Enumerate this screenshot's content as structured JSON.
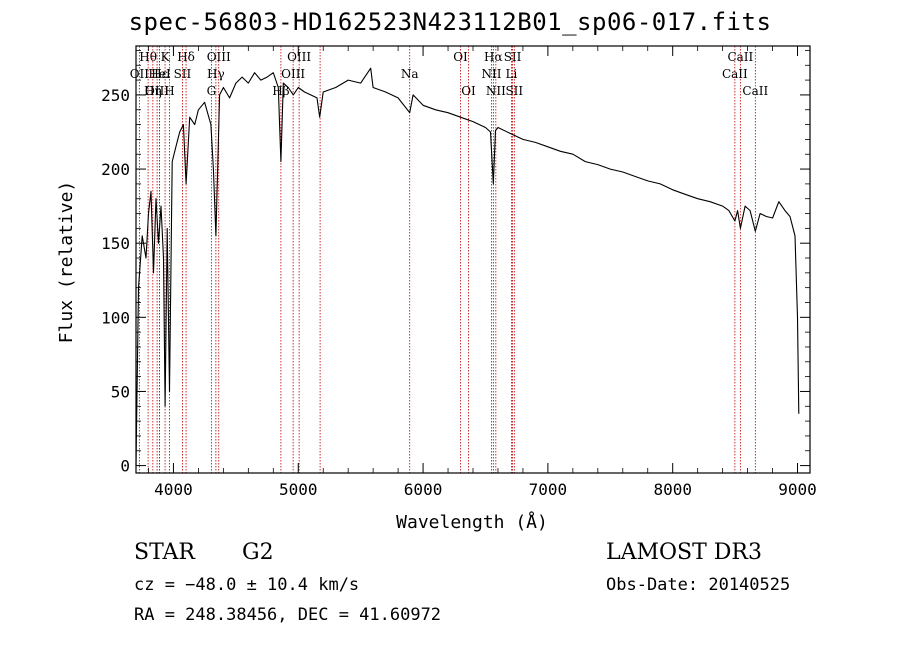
{
  "title": "spec-56803-HD162523N423112B01_sp06-017.fits",
  "chart_data": {
    "type": "line",
    "xlabel": "Wavelength (Å)",
    "ylabel": "Flux (relative)",
    "xlim": [
      3700,
      9100
    ],
    "ylim": [
      -5,
      283
    ],
    "xticks": [
      4000,
      5000,
      6000,
      7000,
      8000,
      9000
    ],
    "yticks": [
      0,
      50,
      100,
      150,
      200,
      250
    ],
    "series": [
      {
        "name": "spectrum",
        "x": [
          3700,
          3720,
          3750,
          3780,
          3800,
          3820,
          3840,
          3860,
          3880,
          3900,
          3920,
          3933,
          3950,
          3968,
          3990,
          4020,
          4050,
          4080,
          4101,
          4130,
          4170,
          4200,
          4250,
          4300,
          4320,
          4340,
          4370,
          4400,
          4450,
          4500,
          4550,
          4600,
          4650,
          4700,
          4750,
          4800,
          4840,
          4861,
          4880,
          4920,
          4960,
          5000,
          5050,
          5100,
          5150,
          5172,
          5200,
          5300,
          5400,
          5500,
          5580,
          5600,
          5700,
          5800,
          5893,
          5920,
          6000,
          6100,
          6200,
          6300,
          6400,
          6500,
          6540,
          6563,
          6580,
          6600,
          6700,
          6800,
          6900,
          7000,
          7100,
          7200,
          7300,
          7400,
          7500,
          7600,
          7700,
          7800,
          7900,
          8000,
          8100,
          8200,
          8300,
          8400,
          8450,
          8498,
          8520,
          8542,
          8580,
          8620,
          8662,
          8700,
          8750,
          8800,
          8850,
          8900,
          8940,
          8980,
          9000,
          9010
        ],
        "y": [
          0,
          120,
          155,
          140,
          170,
          185,
          130,
          180,
          150,
          175,
          140,
          40,
          160,
          50,
          205,
          215,
          225,
          230,
          190,
          235,
          230,
          240,
          245,
          230,
          200,
          155,
          250,
          255,
          248,
          258,
          262,
          258,
          265,
          260,
          262,
          265,
          255,
          205,
          258,
          255,
          250,
          255,
          252,
          250,
          248,
          235,
          252,
          255,
          260,
          258,
          268,
          255,
          252,
          248,
          238,
          250,
          243,
          240,
          238,
          235,
          232,
          228,
          225,
          190,
          226,
          228,
          224,
          220,
          218,
          215,
          212,
          210,
          205,
          203,
          200,
          198,
          195,
          192,
          190,
          186,
          183,
          180,
          178,
          175,
          172,
          165,
          172,
          160,
          175,
          172,
          158,
          170,
          168,
          167,
          178,
          172,
          168,
          155,
          100,
          35
        ]
      }
    ],
    "lines": [
      {
        "label": "Hθ",
        "x": 3797,
        "row": 0
      },
      {
        "label": "OII",
        "x": 3727,
        "row": 1
      },
      {
        "label": "OIII",
        "x": 3869,
        "row": 2
      },
      {
        "label": "Hη",
        "x": 3835,
        "row": 2
      },
      {
        "label": "Hε",
        "x": 3889,
        "row": 1
      },
      {
        "label": "HeI",
        "x": 3889,
        "row": 1
      },
      {
        "label": "K",
        "x": 3933,
        "row": 0
      },
      {
        "label": "H",
        "x": 3968,
        "row": 2
      },
      {
        "label": "Hδ",
        "x": 4101,
        "row": 0
      },
      {
        "label": "SII",
        "x": 4072,
        "row": 1
      },
      {
        "label": "OIII",
        "x": 4363,
        "row": 0
      },
      {
        "label": "Hγ",
        "x": 4340,
        "row": 1
      },
      {
        "label": "G",
        "x": 4304,
        "row": 2
      },
      {
        "label": "OIII",
        "x": 5007,
        "row": 0
      },
      {
        "label": "OIII",
        "x": 4959,
        "row": 1
      },
      {
        "label": "Hβ",
        "x": 4861,
        "row": 2
      },
      {
        "label": "Na",
        "x": 5893,
        "row": 1
      },
      {
        "label": "OI",
        "x": 6300,
        "row": 0
      },
      {
        "label": "OI",
        "x": 6364,
        "row": 2
      },
      {
        "label": "Hα",
        "x": 6563,
        "row": 0
      },
      {
        "label": "NII",
        "x": 6548,
        "row": 1
      },
      {
        "label": "NII",
        "x": 6583,
        "row": 2
      },
      {
        "label": "SII",
        "x": 6717,
        "row": 0
      },
      {
        "label": "Li",
        "x": 6708,
        "row": 1
      },
      {
        "label": "SII",
        "x": 6731,
        "row": 2
      },
      {
        "label": "CaII",
        "x": 8542,
        "row": 0
      },
      {
        "label": "CaII",
        "x": 8498,
        "row": 1
      },
      {
        "label": "CaII",
        "x": 8662,
        "row": 2
      },
      {
        "label": "",
        "x": 5175,
        "row": -1
      }
    ]
  },
  "info": {
    "object_class": "STAR",
    "subclass": "G2",
    "survey": "LAMOST DR3",
    "cz": "cz = −48.0 ± 10.4 km/s",
    "obs_date": "Obs-Date: 20140525",
    "coords": "RA = 248.38456, DEC =  41.60972"
  }
}
